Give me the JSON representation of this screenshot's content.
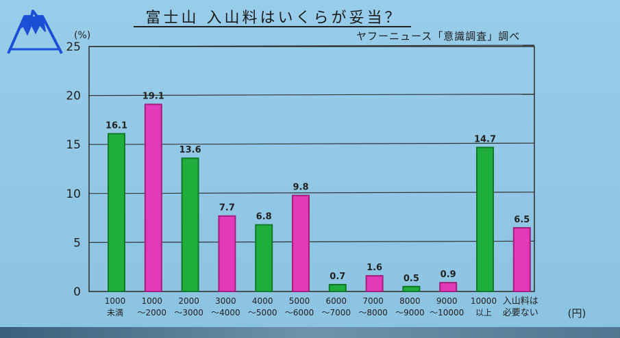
{
  "header": {
    "title": "富士山 入山料はいくらが妥当？",
    "subtitle": "ヤフーニュース「意識調査」調べ"
  },
  "chart_data": {
    "type": "bar",
    "ylabel": "(%)",
    "xlabel": "(円)",
    "ylim": [
      0,
      25
    ],
    "yticks": [
      0,
      5,
      10,
      15,
      20,
      25
    ],
    "ytick_labels": [
      "0",
      "5",
      "10",
      "15",
      "20",
      "25"
    ],
    "grid": true,
    "categories": [
      [
        "1000",
        "未満"
      ],
      [
        "1000",
        "〜2000"
      ],
      [
        "2000",
        "〜3000"
      ],
      [
        "3000",
        "〜4000"
      ],
      [
        "4000",
        "〜5000"
      ],
      [
        "5000",
        "〜6000"
      ],
      [
        "6000",
        "〜7000"
      ],
      [
        "7000",
        "〜8000"
      ],
      [
        "8000",
        "〜9000"
      ],
      [
        "9000",
        "〜10000"
      ],
      [
        "10000",
        "以上"
      ],
      [
        "入山料は",
        "必要ない"
      ]
    ],
    "values": [
      16.1,
      19.1,
      13.6,
      7.7,
      6.8,
      9.8,
      0.7,
      1.6,
      0.5,
      0.9,
      14.7,
      6.5
    ],
    "bar_labels": [
      "16.1",
      "19.1",
      "13.6",
      "7.7",
      "6.8",
      "9.8",
      "0.7",
      "1.6",
      "0.5",
      "0.9",
      "14.7",
      "6.5"
    ],
    "colors": [
      "#1fae3c",
      "#e23ab8"
    ]
  }
}
